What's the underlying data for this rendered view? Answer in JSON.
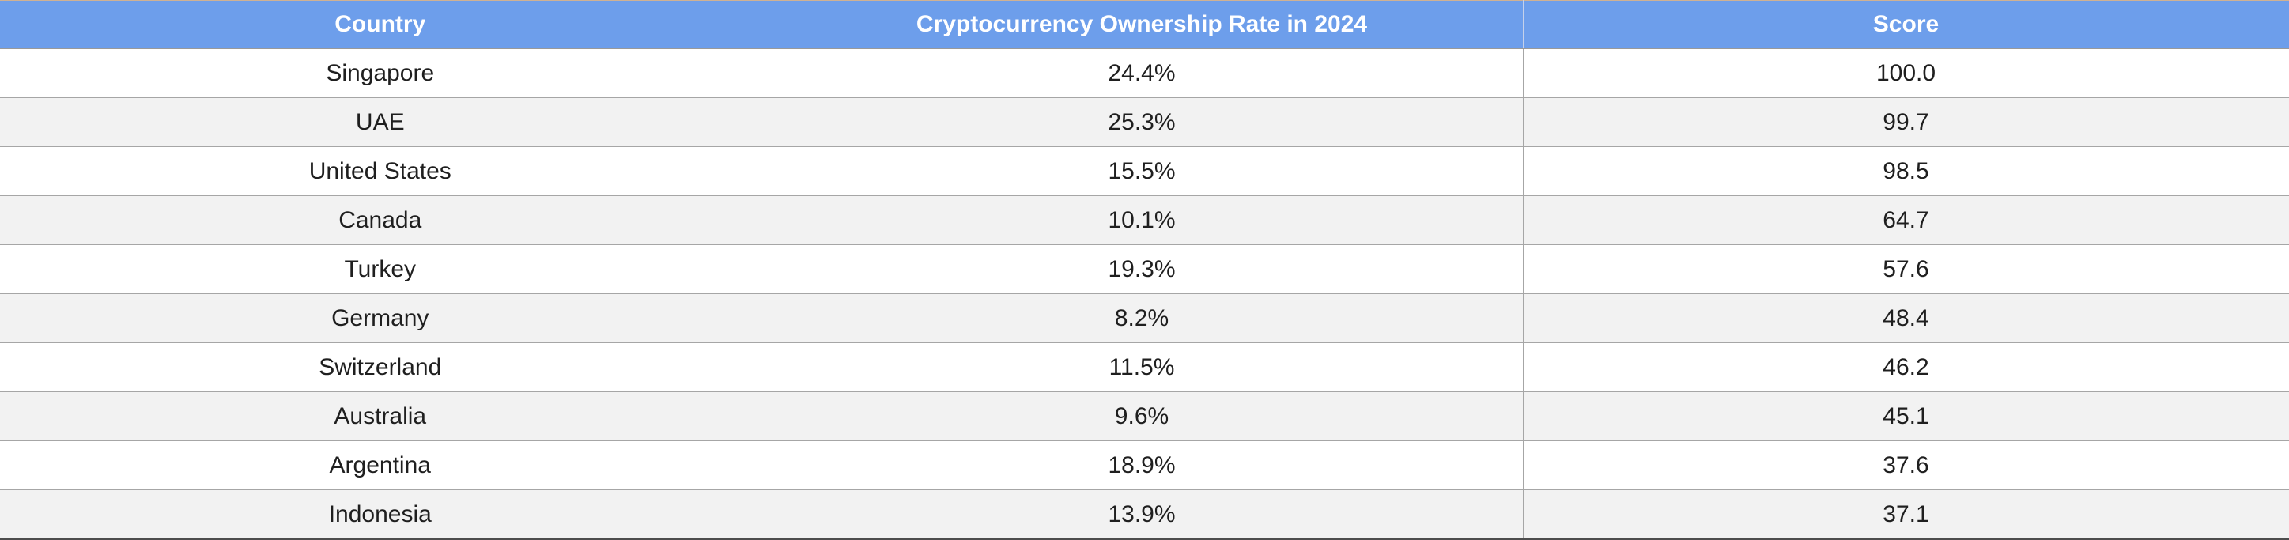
{
  "table": {
    "columns": [
      {
        "id": "country",
        "label": "Country"
      },
      {
        "id": "rate",
        "label": "Cryptocurrency Ownership Rate in 2024"
      },
      {
        "id": "score",
        "label": "Score"
      }
    ],
    "rows": [
      {
        "country": "Singapore",
        "rate": "24.4%",
        "score": "100.0"
      },
      {
        "country": "UAE",
        "rate": "25.3%",
        "score": "99.7"
      },
      {
        "country": "United States",
        "rate": "15.5%",
        "score": "98.5"
      },
      {
        "country": "Canada",
        "rate": "10.1%",
        "score": "64.7"
      },
      {
        "country": "Turkey",
        "rate": "19.3%",
        "score": "57.6"
      },
      {
        "country": "Germany",
        "rate": "8.2%",
        "score": "48.4"
      },
      {
        "country": "Switzerland",
        "rate": "11.5%",
        "score": "46.2"
      },
      {
        "country": "Australia",
        "rate": "9.6%",
        "score": "45.1"
      },
      {
        "country": "Argentina",
        "rate": "18.9%",
        "score": "37.6"
      },
      {
        "country": "Indonesia",
        "rate": "13.9%",
        "score": "37.1"
      }
    ]
  },
  "colors": {
    "header_bg": "#6d9eeb",
    "header_text": "#ffffff",
    "row_bg": "#ffffff",
    "row_alt_bg": "#f2f2f2",
    "body_text": "#1f1f1f",
    "grid_border": "#a6a6a6",
    "top_border": "#cfb193",
    "bottom_border": "#4d4d4d"
  },
  "chart_data": {
    "type": "table",
    "columns": [
      "Country",
      "Cryptocurrency Ownership Rate in 2024",
      "Score"
    ],
    "rows": [
      {
        "country": "Singapore",
        "ownership_rate_pct": 24.4,
        "score": 100.0
      },
      {
        "country": "UAE",
        "ownership_rate_pct": 25.3,
        "score": 99.7
      },
      {
        "country": "United States",
        "ownership_rate_pct": 15.5,
        "score": 98.5
      },
      {
        "country": "Canada",
        "ownership_rate_pct": 10.1,
        "score": 64.7
      },
      {
        "country": "Turkey",
        "ownership_rate_pct": 19.3,
        "score": 57.6
      },
      {
        "country": "Germany",
        "ownership_rate_pct": 8.2,
        "score": 48.4
      },
      {
        "country": "Switzerland",
        "ownership_rate_pct": 11.5,
        "score": 46.2
      },
      {
        "country": "Australia",
        "ownership_rate_pct": 9.6,
        "score": 45.1
      },
      {
        "country": "Argentina",
        "ownership_rate_pct": 18.9,
        "score": 37.6
      },
      {
        "country": "Indonesia",
        "ownership_rate_pct": 13.9,
        "score": 37.1
      }
    ],
    "layout": {
      "header_style": "blue-bold-centered",
      "row_striping": true,
      "text_align": "center"
    }
  }
}
